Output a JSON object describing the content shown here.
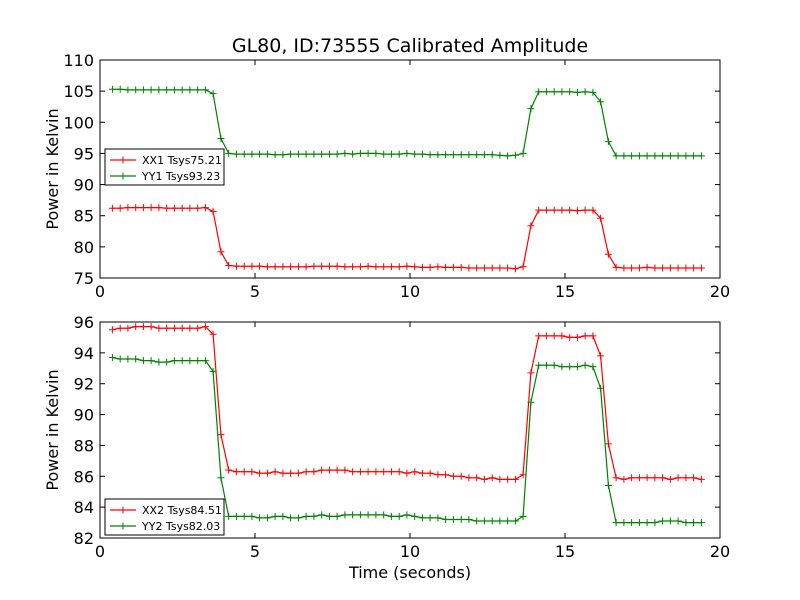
{
  "chart_data": {
    "type": "line",
    "title": "GL80, ID:73555 Calibrated Amplitude",
    "xlabel": "Time (seconds)",
    "panels": [
      {
        "ylabel": "Power in Kelvin",
        "xlim": [
          0,
          20
        ],
        "ylim": [
          75,
          110
        ],
        "xticks": [
          0,
          5,
          10,
          15,
          20
        ],
        "yticks": [
          75,
          80,
          85,
          90,
          95,
          100,
          105,
          110
        ],
        "legend_position": "center-left",
        "series": [
          {
            "name": "XX1 Tsys75.21",
            "color": "#ff0000",
            "x": [
              0.4,
              0.65,
              0.9,
              1.15,
              1.4,
              1.65,
              1.9,
              2.15,
              2.4,
              2.65,
              2.9,
              3.15,
              3.4,
              3.65,
              3.9,
              4.15,
              4.4,
              4.65,
              4.9,
              5.15,
              5.4,
              5.65,
              5.9,
              6.15,
              6.4,
              6.65,
              6.9,
              7.15,
              7.4,
              7.65,
              7.9,
              8.15,
              8.4,
              8.65,
              8.9,
              9.15,
              9.4,
              9.65,
              9.9,
              10.15,
              10.4,
              10.65,
              10.9,
              11.15,
              11.4,
              11.65,
              11.9,
              12.15,
              12.4,
              12.65,
              12.9,
              13.15,
              13.4,
              13.65,
              13.9,
              14.15,
              14.4,
              14.65,
              14.9,
              15.15,
              15.4,
              15.65,
              15.9,
              16.15,
              16.4,
              16.65,
              16.9,
              17.15,
              17.4,
              17.65,
              17.9,
              18.15,
              18.4,
              18.65,
              18.9,
              19.15,
              19.4
            ],
            "y": [
              86.2,
              86.2,
              86.3,
              86.3,
              86.3,
              86.3,
              86.3,
              86.2,
              86.2,
              86.2,
              86.2,
              86.2,
              86.3,
              85.7,
              79.2,
              77.0,
              76.9,
              76.9,
              76.9,
              76.9,
              76.8,
              76.8,
              76.8,
              76.8,
              76.8,
              76.8,
              76.9,
              76.9,
              76.9,
              76.9,
              76.8,
              76.8,
              76.8,
              76.9,
              76.8,
              76.8,
              76.8,
              76.8,
              76.9,
              76.8,
              76.7,
              76.7,
              76.8,
              76.7,
              76.7,
              76.7,
              76.6,
              76.6,
              76.6,
              76.6,
              76.6,
              76.6,
              76.5,
              76.8,
              83.4,
              85.9,
              85.9,
              85.9,
              85.9,
              85.9,
              85.8,
              85.9,
              85.9,
              84.6,
              78.8,
              76.7,
              76.6,
              76.6,
              76.6,
              76.7,
              76.6,
              76.6,
              76.6,
              76.6,
              76.6,
              76.6,
              76.6
            ]
          },
          {
            "name": "YY1 Tsys93.23",
            "color": "#008000",
            "x": [
              0.4,
              0.65,
              0.9,
              1.15,
              1.4,
              1.65,
              1.9,
              2.15,
              2.4,
              2.65,
              2.9,
              3.15,
              3.4,
              3.65,
              3.9,
              4.15,
              4.4,
              4.65,
              4.9,
              5.15,
              5.4,
              5.65,
              5.9,
              6.15,
              6.4,
              6.65,
              6.9,
              7.15,
              7.4,
              7.65,
              7.9,
              8.15,
              8.4,
              8.65,
              8.9,
              9.15,
              9.4,
              9.65,
              9.9,
              10.15,
              10.4,
              10.65,
              10.9,
              11.15,
              11.4,
              11.65,
              11.9,
              12.15,
              12.4,
              12.65,
              12.9,
              13.15,
              13.4,
              13.65,
              13.9,
              14.15,
              14.4,
              14.65,
              14.9,
              15.15,
              15.4,
              15.65,
              15.9,
              16.15,
              16.4,
              16.65,
              16.9,
              17.15,
              17.4,
              17.65,
              17.9,
              18.15,
              18.4,
              18.65,
              18.9,
              19.15,
              19.4
            ],
            "y": [
              105.3,
              105.3,
              105.2,
              105.2,
              105.2,
              105.2,
              105.2,
              105.2,
              105.2,
              105.2,
              105.2,
              105.2,
              105.2,
              104.6,
              97.4,
              95.0,
              94.9,
              94.9,
              94.9,
              94.9,
              94.9,
              94.8,
              94.8,
              94.9,
              94.9,
              94.9,
              94.9,
              94.9,
              94.9,
              94.9,
              95.0,
              94.9,
              95.0,
              95.0,
              95.0,
              94.9,
              94.9,
              94.9,
              95.0,
              94.9,
              94.9,
              94.8,
              94.8,
              94.8,
              94.8,
              94.8,
              94.8,
              94.8,
              94.8,
              94.8,
              94.7,
              94.6,
              94.7,
              95.0,
              102.2,
              104.9,
              104.9,
              104.9,
              104.9,
              104.9,
              104.8,
              104.9,
              104.8,
              103.3,
              96.9,
              94.6,
              94.6,
              94.6,
              94.6,
              94.6,
              94.6,
              94.6,
              94.6,
              94.6,
              94.6,
              94.6,
              94.6
            ]
          }
        ]
      },
      {
        "ylabel": "Power in Kelvin",
        "xlim": [
          0,
          20
        ],
        "ylim": [
          82,
          96
        ],
        "xticks": [
          0,
          5,
          10,
          15,
          20
        ],
        "yticks": [
          82,
          84,
          86,
          88,
          90,
          92,
          94,
          96
        ],
        "legend_position": "lower-left",
        "series": [
          {
            "name": "XX2 Tsys84.51",
            "color": "#ff0000",
            "x": [
              0.4,
              0.65,
              0.9,
              1.15,
              1.4,
              1.65,
              1.9,
              2.15,
              2.4,
              2.65,
              2.9,
              3.15,
              3.4,
              3.65,
              3.9,
              4.15,
              4.4,
              4.65,
              4.9,
              5.15,
              5.4,
              5.65,
              5.9,
              6.15,
              6.4,
              6.65,
              6.9,
              7.15,
              7.4,
              7.65,
              7.9,
              8.15,
              8.4,
              8.65,
              8.9,
              9.15,
              9.4,
              9.65,
              9.9,
              10.15,
              10.4,
              10.65,
              10.9,
              11.15,
              11.4,
              11.65,
              11.9,
              12.15,
              12.4,
              12.65,
              12.9,
              13.15,
              13.4,
              13.65,
              13.9,
              14.15,
              14.4,
              14.65,
              14.9,
              15.15,
              15.4,
              15.65,
              15.9,
              16.15,
              16.4,
              16.65,
              16.9,
              17.15,
              17.4,
              17.65,
              17.9,
              18.15,
              18.4,
              18.65,
              18.9,
              19.15,
              19.4
            ],
            "y": [
              95.5,
              95.6,
              95.6,
              95.7,
              95.7,
              95.7,
              95.6,
              95.6,
              95.6,
              95.6,
              95.6,
              95.6,
              95.7,
              95.2,
              88.7,
              86.4,
              86.3,
              86.3,
              86.3,
              86.2,
              86.2,
              86.3,
              86.2,
              86.2,
              86.2,
              86.3,
              86.3,
              86.4,
              86.4,
              86.4,
              86.4,
              86.3,
              86.3,
              86.3,
              86.3,
              86.3,
              86.3,
              86.3,
              86.2,
              86.3,
              86.2,
              86.2,
              86.1,
              86.1,
              86.0,
              86.0,
              85.9,
              85.9,
              85.8,
              85.9,
              85.8,
              85.8,
              85.8,
              86.1,
              92.7,
              95.1,
              95.1,
              95.1,
              95.1,
              95.0,
              95.0,
              95.1,
              95.1,
              93.8,
              88.1,
              85.9,
              85.8,
              85.9,
              85.9,
              85.9,
              85.9,
              85.9,
              85.8,
              85.9,
              85.9,
              85.9,
              85.8
            ]
          },
          {
            "name": "YY2 Tsys82.03",
            "color": "#008000",
            "x": [
              0.4,
              0.65,
              0.9,
              1.15,
              1.4,
              1.65,
              1.9,
              2.15,
              2.4,
              2.65,
              2.9,
              3.15,
              3.4,
              3.65,
              3.9,
              4.15,
              4.4,
              4.65,
              4.9,
              5.15,
              5.4,
              5.65,
              5.9,
              6.15,
              6.4,
              6.65,
              6.9,
              7.15,
              7.4,
              7.65,
              7.9,
              8.15,
              8.4,
              8.65,
              8.9,
              9.15,
              9.4,
              9.65,
              9.9,
              10.15,
              10.4,
              10.65,
              10.9,
              11.15,
              11.4,
              11.65,
              11.9,
              12.15,
              12.4,
              12.65,
              12.9,
              13.15,
              13.4,
              13.65,
              13.9,
              14.15,
              14.4,
              14.65,
              14.9,
              15.15,
              15.4,
              15.65,
              15.9,
              16.15,
              16.4,
              16.65,
              16.9,
              17.15,
              17.4,
              17.65,
              17.9,
              18.15,
              18.4,
              18.65,
              18.9,
              19.15,
              19.4
            ],
            "y": [
              93.7,
              93.6,
              93.6,
              93.6,
              93.5,
              93.5,
              93.4,
              93.4,
              93.5,
              93.5,
              93.5,
              93.5,
              93.5,
              92.8,
              85.9,
              83.4,
              83.4,
              83.4,
              83.4,
              83.3,
              83.3,
              83.4,
              83.4,
              83.3,
              83.3,
              83.4,
              83.4,
              83.5,
              83.4,
              83.4,
              83.5,
              83.5,
              83.5,
              83.5,
              83.5,
              83.5,
              83.4,
              83.4,
              83.5,
              83.4,
              83.3,
              83.3,
              83.3,
              83.2,
              83.2,
              83.2,
              83.2,
              83.1,
              83.1,
              83.1,
              83.1,
              83.1,
              83.1,
              83.4,
              90.8,
              93.2,
              93.2,
              93.2,
              93.1,
              93.1,
              93.1,
              93.2,
              93.1,
              91.7,
              85.4,
              83.0,
              83.0,
              83.0,
              83.0,
              83.0,
              83.0,
              83.1,
              83.1,
              83.1,
              83.0,
              83.0,
              83.0
            ]
          }
        ]
      }
    ]
  }
}
